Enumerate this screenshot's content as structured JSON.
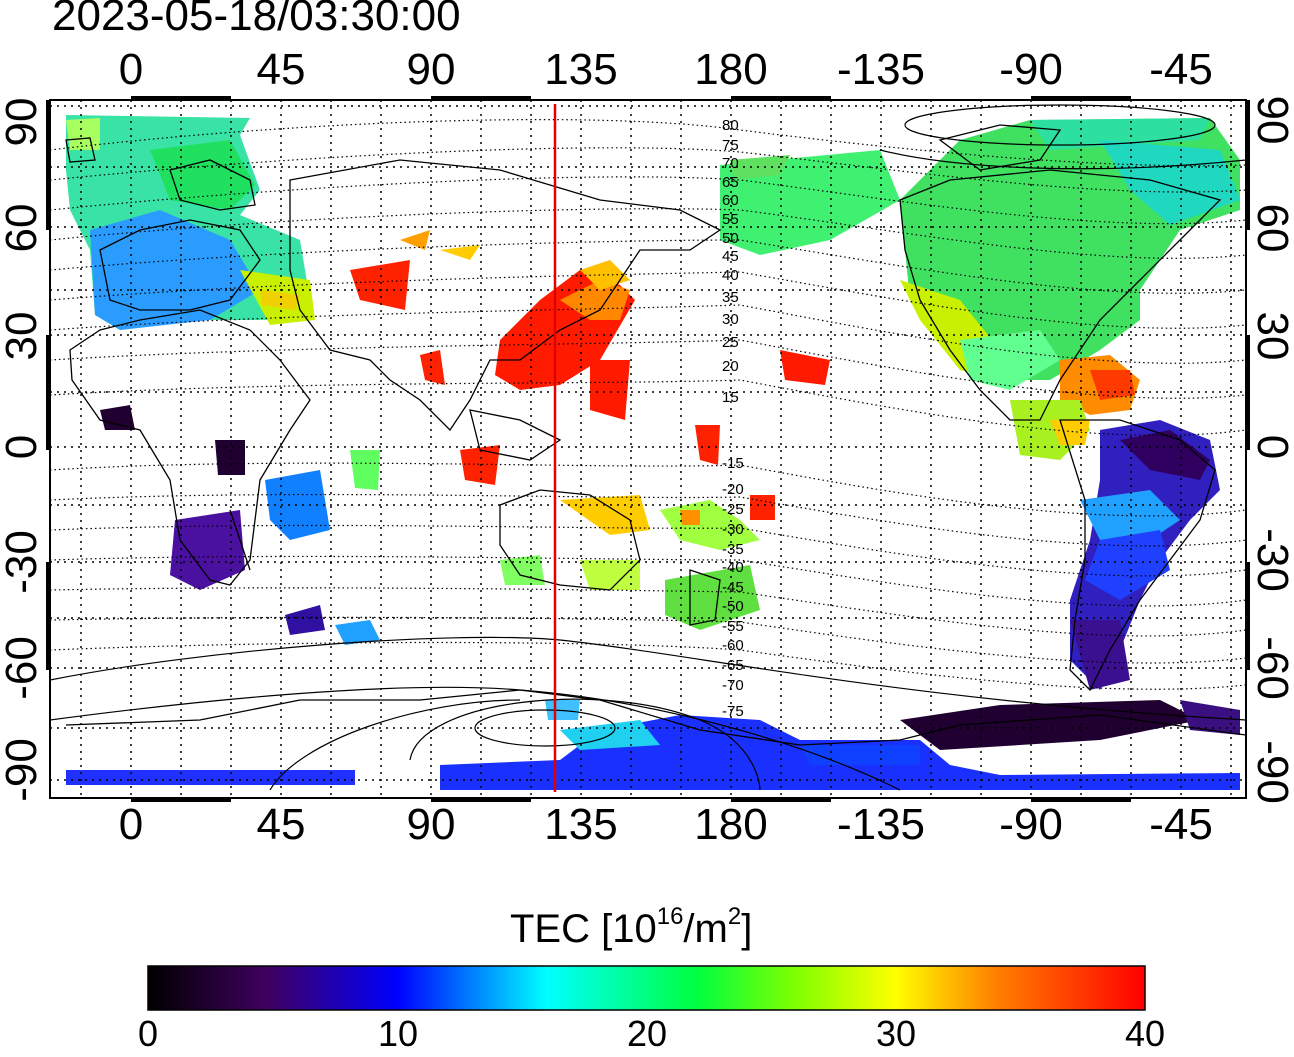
{
  "header": {
    "timestamp": "2023-05-18/03:30:00"
  },
  "axes": {
    "lon_labels": [
      "0",
      "45",
      "90",
      "135",
      "180",
      "-135",
      "-90",
      "-45"
    ],
    "lat_labels": [
      "90",
      "60",
      "30",
      "0",
      "-30",
      "-60",
      "-90"
    ]
  },
  "contours": {
    "labels": [
      "80",
      "75",
      "70",
      "65",
      "60",
      "55",
      "50",
      "45",
      "40",
      "35",
      "30",
      "25",
      "20",
      "15",
      "-15",
      "-20",
      "-25",
      "-30",
      "-35",
      "-40",
      "-45",
      "-50",
      "-55",
      "-60",
      "-65",
      "-70",
      "-75"
    ]
  },
  "colorbar": {
    "title": "TEC  [10",
    "title_exp": "16",
    "title_unit": "/m",
    "title_unit_exp": "2",
    "title_close": "]",
    "ticks": [
      "0",
      "10",
      "20",
      "30",
      "40"
    ],
    "range": [
      0,
      40
    ]
  },
  "colors": {
    "marker_line": "#e00000"
  },
  "marker": {
    "longitude": 128
  }
}
